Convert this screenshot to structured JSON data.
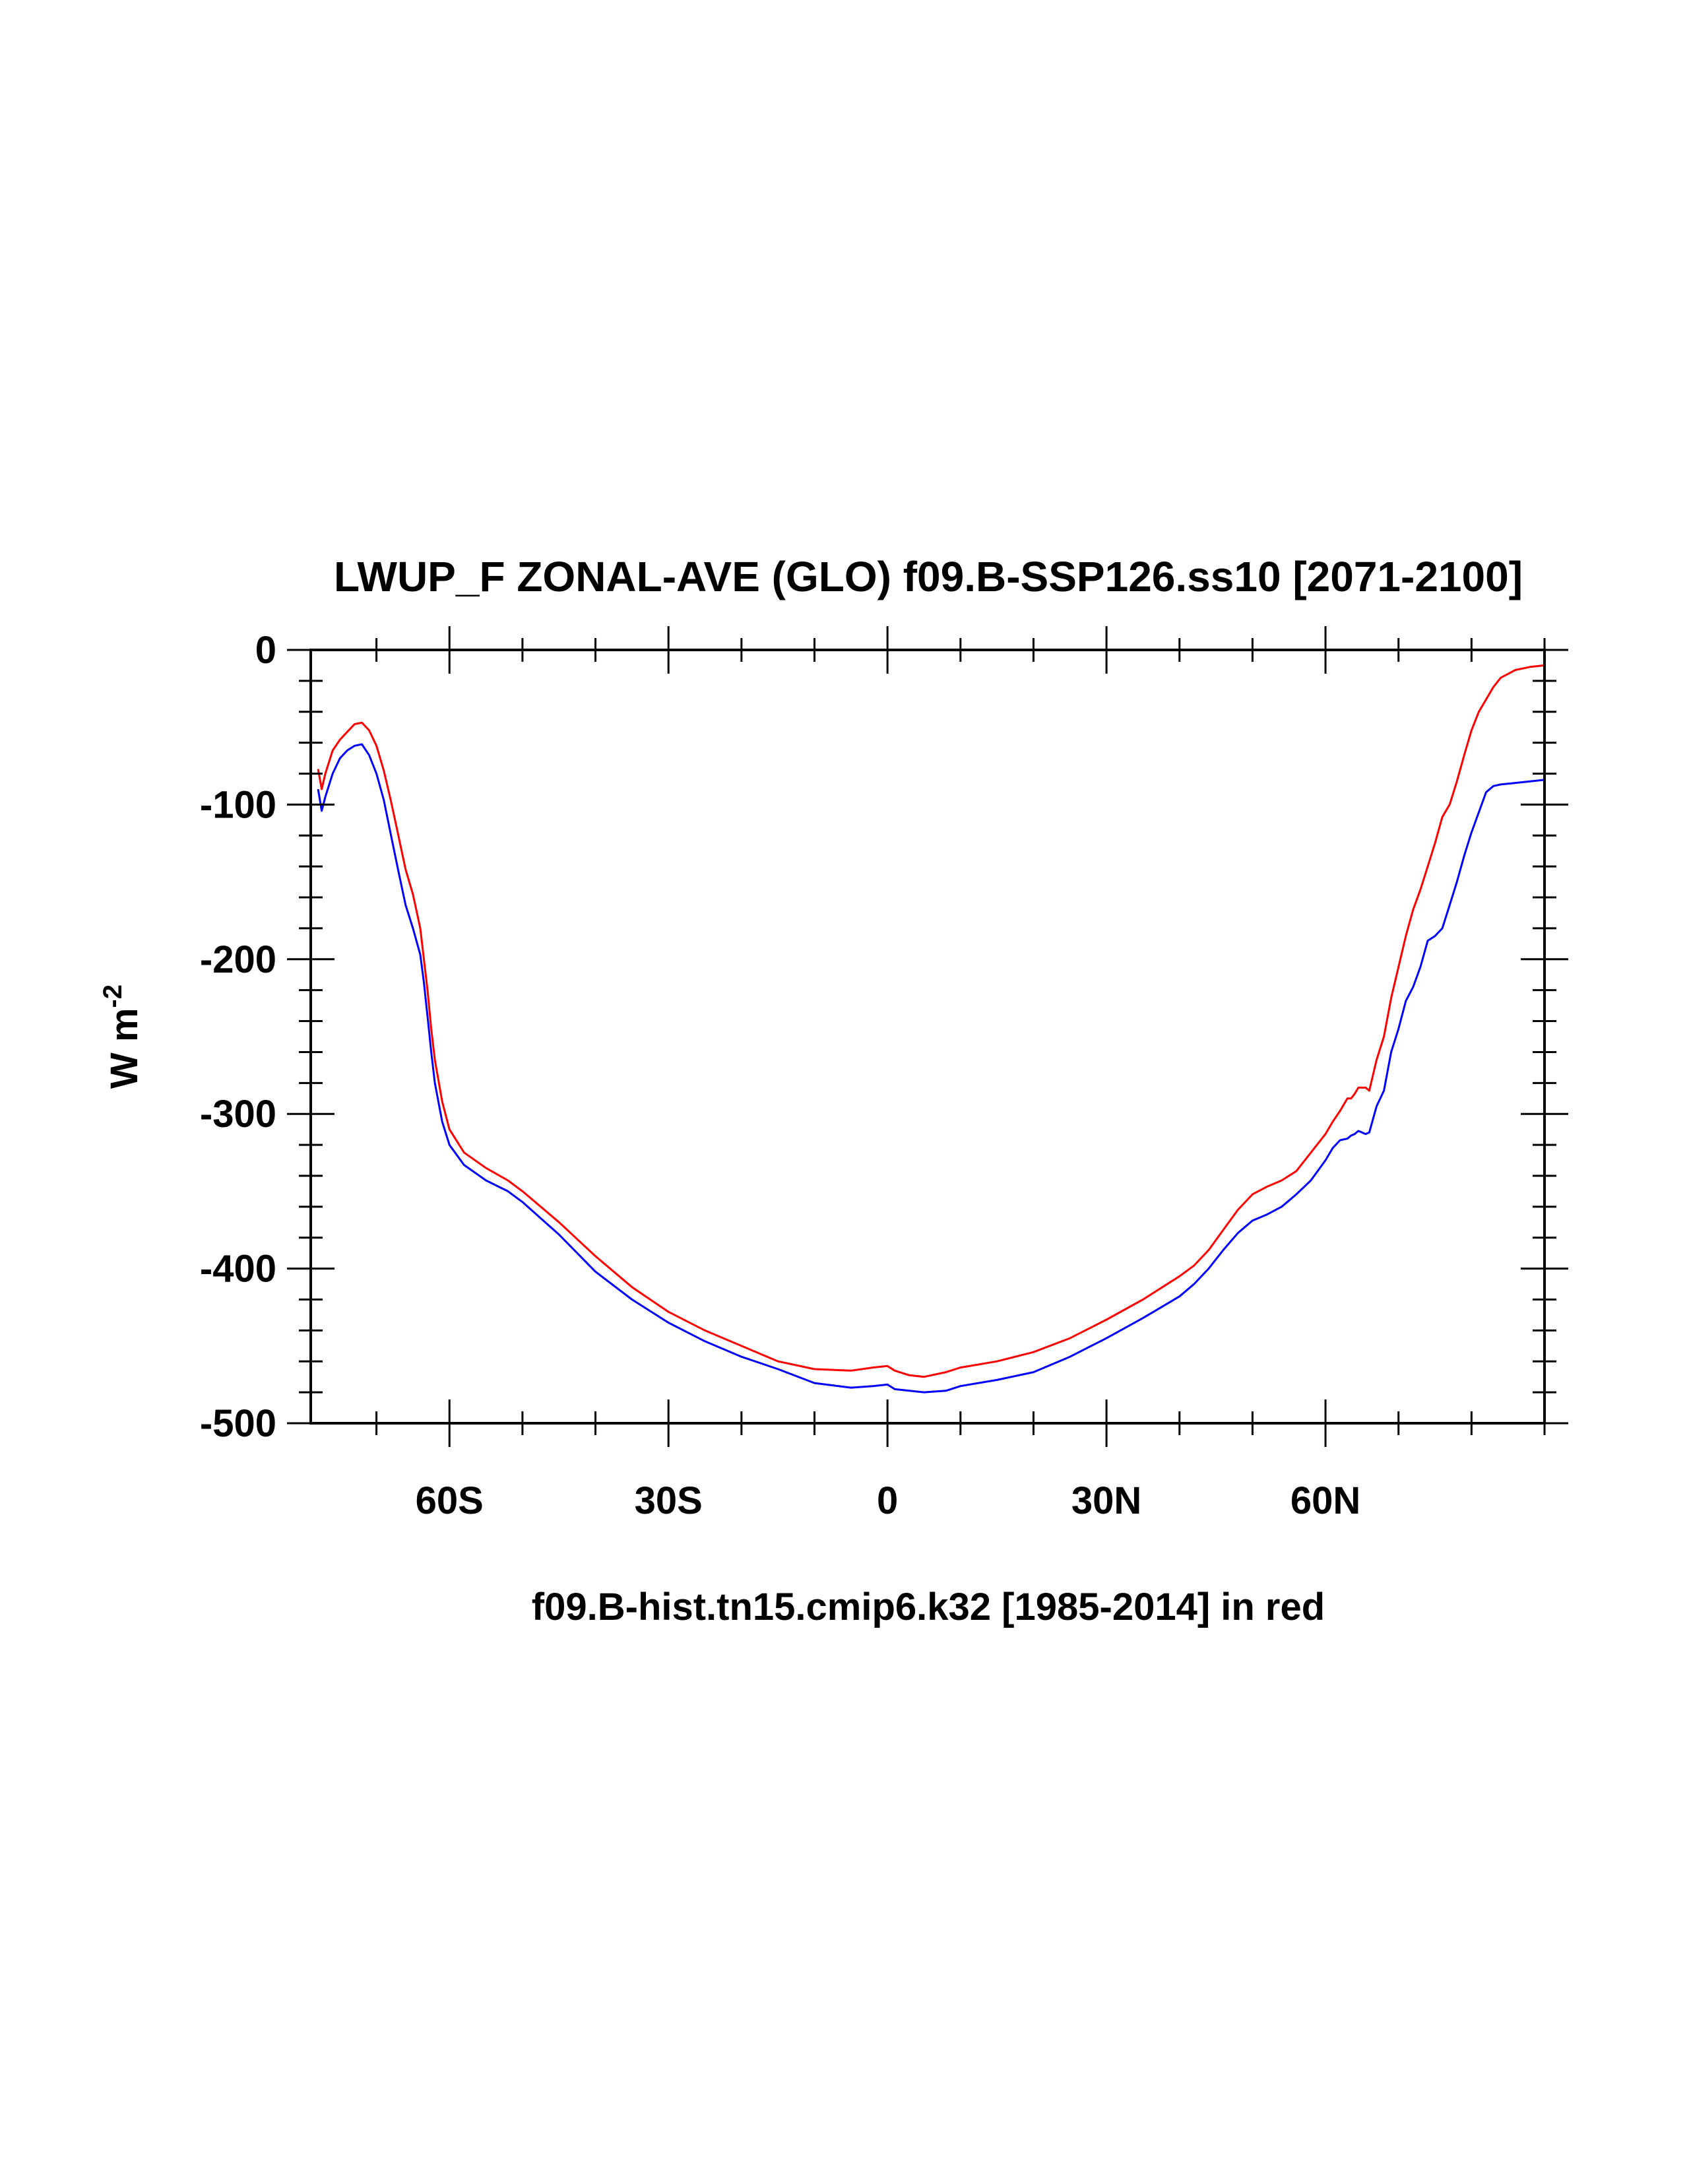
{
  "chart_data": {
    "type": "line",
    "title": "LWUP_F ZONAL-AVE (GLO) f09.B-SSP126.ss10 [2071-2100]",
    "xlabel": "f09.B-hist.tn15.cmip6.k32 [1985-2014] in red",
    "ylabel": "W m",
    "ylabel_superscript": "-2",
    "xlim": [
      -79,
      90
    ],
    "ylim": [
      -500,
      0
    ],
    "xticks": [
      {
        "value": -60,
        "label": "60S"
      },
      {
        "value": -30,
        "label": "30S"
      },
      {
        "value": 0,
        "label": "0"
      },
      {
        "value": 30,
        "label": "30N"
      },
      {
        "value": 60,
        "label": "60N"
      }
    ],
    "yticks": [
      {
        "value": 0,
        "label": "0"
      },
      {
        "value": -100,
        "label": "-100"
      },
      {
        "value": -200,
        "label": "-200"
      },
      {
        "value": -300,
        "label": "-300"
      },
      {
        "value": -400,
        "label": "-400"
      },
      {
        "value": -500,
        "label": "-500"
      }
    ],
    "series": [
      {
        "name": "f09.B-hist.tn15.cmip6.k32 [1985-2014]",
        "color": "#ff0000",
        "x": [
          -78,
          -77.5,
          -77,
          -76,
          -75,
          -74,
          -73,
          -72,
          -71,
          -70,
          -69,
          -68,
          -67,
          -66,
          -65,
          -64,
          -63.5,
          -63,
          -62.5,
          -62,
          -61,
          -60,
          -58,
          -55,
          -52,
          -50,
          -45,
          -40,
          -35,
          -30,
          -25,
          -20,
          -15,
          -10,
          -5,
          -2,
          0,
          1,
          3,
          5,
          8,
          10,
          15,
          20,
          25,
          30,
          35,
          40,
          42,
          44,
          46,
          48,
          50,
          52,
          54,
          56,
          58,
          60,
          61,
          62,
          63,
          63.5,
          64,
          64.5,
          65,
          65.5,
          66,
          67,
          68,
          69,
          70,
          71,
          72,
          73,
          74,
          75,
          76,
          77,
          78,
          79,
          80,
          81,
          82,
          83,
          84,
          86,
          88,
          90
        ],
        "values": [
          -77,
          -90,
          -80,
          -65,
          -58,
          -53,
          -48,
          -47,
          -52,
          -62,
          -78,
          -98,
          -120,
          -142,
          -158,
          -180,
          -200,
          -220,
          -245,
          -265,
          -292,
          -310,
          -325,
          -335,
          -343,
          -350,
          -370,
          -392,
          -412,
          -428,
          -440,
          -450,
          -460,
          -465,
          -466,
          -464,
          -463,
          -466,
          -469,
          -470,
          -467,
          -464,
          -460,
          -454,
          -445,
          -433,
          -420,
          -405,
          -398,
          -388,
          -375,
          -362,
          -352,
          -347,
          -343,
          -337,
          -325,
          -313,
          -305,
          -298,
          -290,
          -290,
          -287,
          -283,
          -283,
          -283,
          -285,
          -265,
          -250,
          -225,
          -205,
          -185,
          -168,
          -155,
          -140,
          -125,
          -108,
          -100,
          -85,
          -68,
          -52,
          -40,
          -32,
          -24,
          -18,
          -13,
          -11,
          -10
        ]
      },
      {
        "name": "f09.B-SSP126.ss10 [2071-2100]",
        "color": "#0000ff",
        "x": [
          -78,
          -77.5,
          -77,
          -76,
          -75,
          -74,
          -73,
          -72,
          -71,
          -70,
          -69,
          -68,
          -67,
          -66,
          -65,
          -64,
          -63.5,
          -63,
          -62.5,
          -62,
          -61,
          -60,
          -58,
          -55,
          -52,
          -50,
          -45,
          -40,
          -35,
          -30,
          -25,
          -20,
          -15,
          -10,
          -5,
          -2,
          0,
          1,
          3,
          5,
          8,
          10,
          15,
          20,
          25,
          30,
          35,
          40,
          42,
          44,
          46,
          48,
          50,
          52,
          54,
          56,
          58,
          60,
          61,
          62,
          63,
          63.5,
          64,
          64.5,
          65,
          65.5,
          66,
          67,
          68,
          69,
          70,
          71,
          72,
          73,
          74,
          75,
          76,
          77,
          78,
          79,
          80,
          81,
          82,
          83,
          84,
          86,
          88,
          90
        ],
        "values": [
          -90,
          -104,
          -95,
          -80,
          -70,
          -65,
          -62,
          -61,
          -68,
          -80,
          -97,
          -120,
          -143,
          -165,
          -180,
          -197,
          -215,
          -237,
          -260,
          -280,
          -305,
          -320,
          -333,
          -343,
          -350,
          -357,
          -378,
          -402,
          -420,
          -435,
          -447,
          -457,
          -465,
          -474,
          -477,
          -476,
          -475,
          -478,
          -479,
          -480,
          -479,
          -476,
          -472,
          -467,
          -457,
          -445,
          -432,
          -418,
          -410,
          -400,
          -388,
          -377,
          -369,
          -365,
          -360,
          -352,
          -343,
          -330,
          -322,
          -317,
          -316,
          -314,
          -313,
          -311,
          -312,
          -313,
          -312,
          -295,
          -285,
          -260,
          -245,
          -227,
          -218,
          -205,
          -188,
          -185,
          -180,
          -165,
          -150,
          -133,
          -118,
          -105,
          -92,
          -88,
          -87,
          -86,
          -85,
          -84
        ]
      }
    ]
  }
}
